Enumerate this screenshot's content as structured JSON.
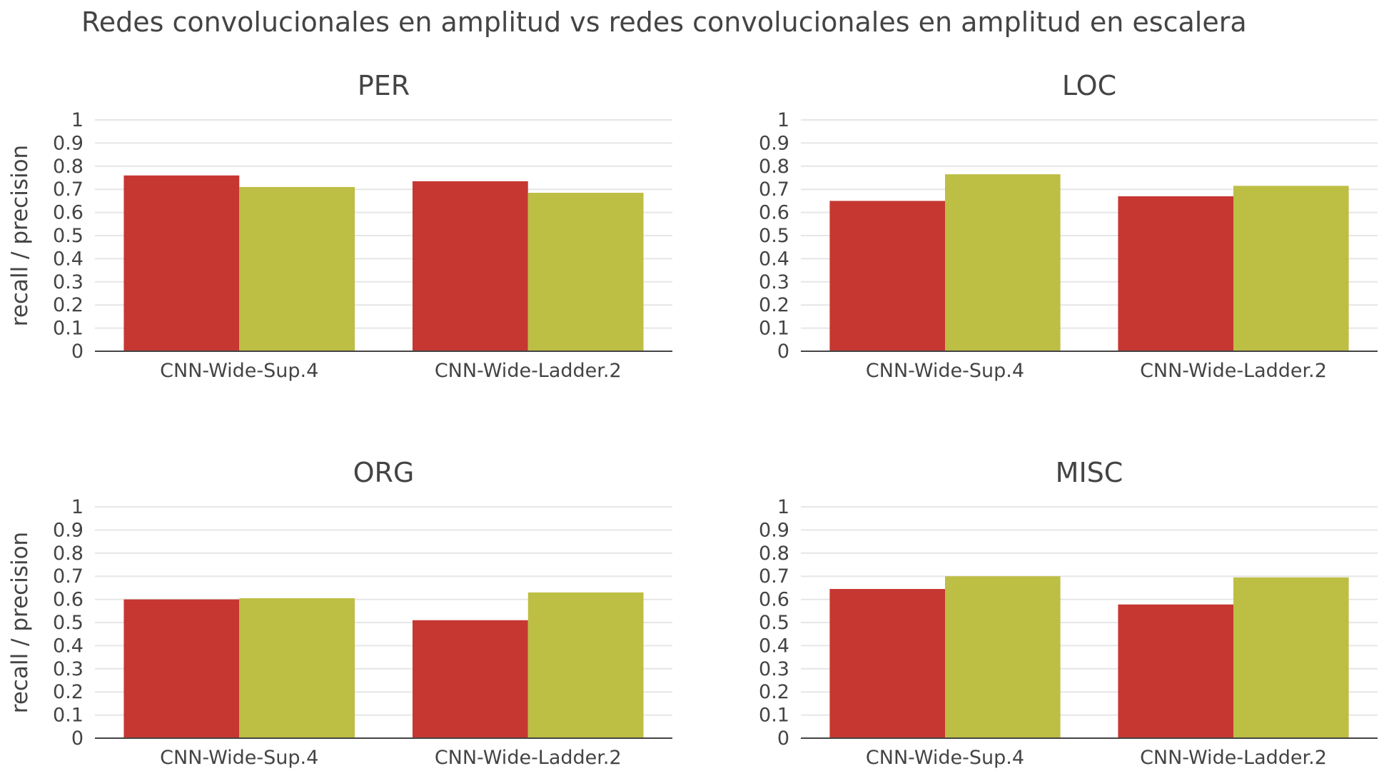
{
  "title": "Redes convolucionales en amplitud vs redes convolucionales en amplitud en escalera",
  "colors": {
    "recall": "#c63731",
    "precision": "#bdbe44",
    "text": "#444444",
    "grid": "#e6e6e6"
  },
  "chart_data": [
    {
      "type": "bar",
      "title": "PER",
      "categories": [
        "CNN-Wide-Sup.4",
        "CNN-Wide-Ladder.2"
      ],
      "series": [
        {
          "values": [
            0.76,
            0.735
          ]
        },
        {
          "values": [
            0.71,
            0.685
          ]
        }
      ],
      "ylabel": "recall / precision",
      "ylim": [
        0,
        1
      ],
      "yticks": [
        "0",
        "0.1",
        "0.2",
        "0.3",
        "0.4",
        "0.5",
        "0.6",
        "0.7",
        "0.8",
        "0.9",
        "1"
      ],
      "grid": true
    },
    {
      "type": "bar",
      "title": "LOC",
      "categories": [
        "CNN-Wide-Sup.4",
        "CNN-Wide-Ladder.2"
      ],
      "series": [
        {
          "values": [
            0.65,
            0.67
          ]
        },
        {
          "values": [
            0.765,
            0.715
          ]
        }
      ],
      "ylabel": "",
      "ylim": [
        0,
        1
      ],
      "yticks": [
        "0",
        "0.1",
        "0.2",
        "0.3",
        "0.4",
        "0.5",
        "0.6",
        "0.7",
        "0.8",
        "0.9",
        "1"
      ],
      "grid": true
    },
    {
      "type": "bar",
      "title": "ORG",
      "categories": [
        "CNN-Wide-Sup.4",
        "CNN-Wide-Ladder.2"
      ],
      "series": [
        {
          "values": [
            0.6,
            0.51
          ]
        },
        {
          "values": [
            0.605,
            0.63
          ]
        }
      ],
      "ylabel": "recall / precision",
      "ylim": [
        0,
        1
      ],
      "yticks": [
        "0",
        "0.1",
        "0.2",
        "0.3",
        "0.4",
        "0.5",
        "0.6",
        "0.7",
        "0.8",
        "0.9",
        "1"
      ],
      "grid": true
    },
    {
      "type": "bar",
      "title": "MISC",
      "categories": [
        "CNN-Wide-Sup.4",
        "CNN-Wide-Ladder.2"
      ],
      "series": [
        {
          "values": [
            0.645,
            0.578
          ]
        },
        {
          "values": [
            0.7,
            0.695
          ]
        }
      ],
      "ylabel": "",
      "ylim": [
        0,
        1
      ],
      "yticks": [
        "0",
        "0.1",
        "0.2",
        "0.3",
        "0.4",
        "0.5",
        "0.6",
        "0.7",
        "0.8",
        "0.9",
        "1"
      ],
      "grid": true
    }
  ]
}
